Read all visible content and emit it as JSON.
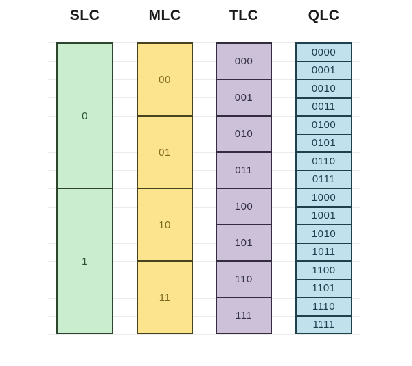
{
  "diagram": {
    "background_color": "#ffffff",
    "gridline_color": "#ebebeb",
    "header_text_color": "#1a1a1a",
    "columns": [
      {
        "label": "SLC",
        "fill": "#c9edce",
        "border": "#2c452c",
        "text_color": "#2c5234",
        "cells": [
          "0",
          "1"
        ]
      },
      {
        "label": "MLC",
        "fill": "#fbe48d",
        "border": "#46431f",
        "text_color": "#7d6b22",
        "cells": [
          "00",
          "01",
          "10",
          "11"
        ]
      },
      {
        "label": "TLC",
        "fill": "#ccc1d9",
        "border": "#322c3e",
        "text_color": "#343142",
        "cells": [
          "000",
          "001",
          "010",
          "011",
          "100",
          "101",
          "110",
          "111"
        ]
      },
      {
        "label": "QLC",
        "fill": "#c1e2ed",
        "border": "#20404d",
        "text_color": "#1d3c4e",
        "cells": [
          "0000",
          "0001",
          "0010",
          "0011",
          "0100",
          "0101",
          "0110",
          "0111",
          "1000",
          "1001",
          "1010",
          "1011",
          "1100",
          "1101",
          "1110",
          "1111"
        ]
      }
    ]
  }
}
